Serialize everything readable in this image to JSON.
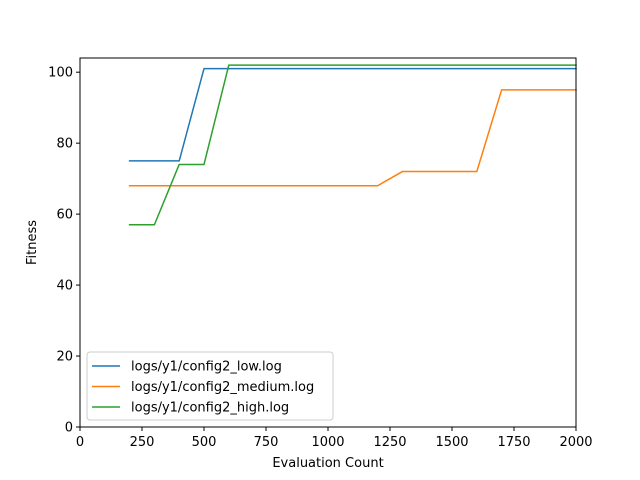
{
  "chart_data": {
    "type": "line",
    "title": "",
    "xlabel": "Evaluation Count",
    "ylabel": "Fitness",
    "xlim": [
      0,
      2000
    ],
    "ylim": [
      0,
      104
    ],
    "xticks": [
      0,
      250,
      500,
      750,
      1000,
      1250,
      1500,
      1750,
      2000
    ],
    "yticks": [
      0,
      20,
      40,
      60,
      80,
      100
    ],
    "xtick_labels": [
      "0",
      "250",
      "500",
      "750",
      "1000",
      "1250",
      "1500",
      "1750",
      "2000"
    ],
    "ytick_labels": [
      "0",
      "20",
      "40",
      "60",
      "80",
      "100"
    ],
    "grid": false,
    "legend_position": "lower-left",
    "series": [
      {
        "name": "logs/y1/config2_low.log",
        "color": "#1f77b4",
        "x": [
          200,
          300,
          400,
          500,
          600,
          2000
        ],
        "y": [
          75,
          75,
          75,
          101,
          101,
          101
        ]
      },
      {
        "name": "logs/y1/config2_medium.log",
        "color": "#ff7f0e",
        "x": [
          200,
          1200,
          1300,
          1600,
          1700,
          2000
        ],
        "y": [
          68,
          68,
          72,
          72,
          95,
          95
        ]
      },
      {
        "name": "logs/y1/config2_high.log",
        "color": "#2ca02c",
        "x": [
          200,
          300,
          400,
          500,
          600,
          2000
        ],
        "y": [
          57,
          57,
          74,
          74,
          102,
          102
        ]
      }
    ]
  }
}
